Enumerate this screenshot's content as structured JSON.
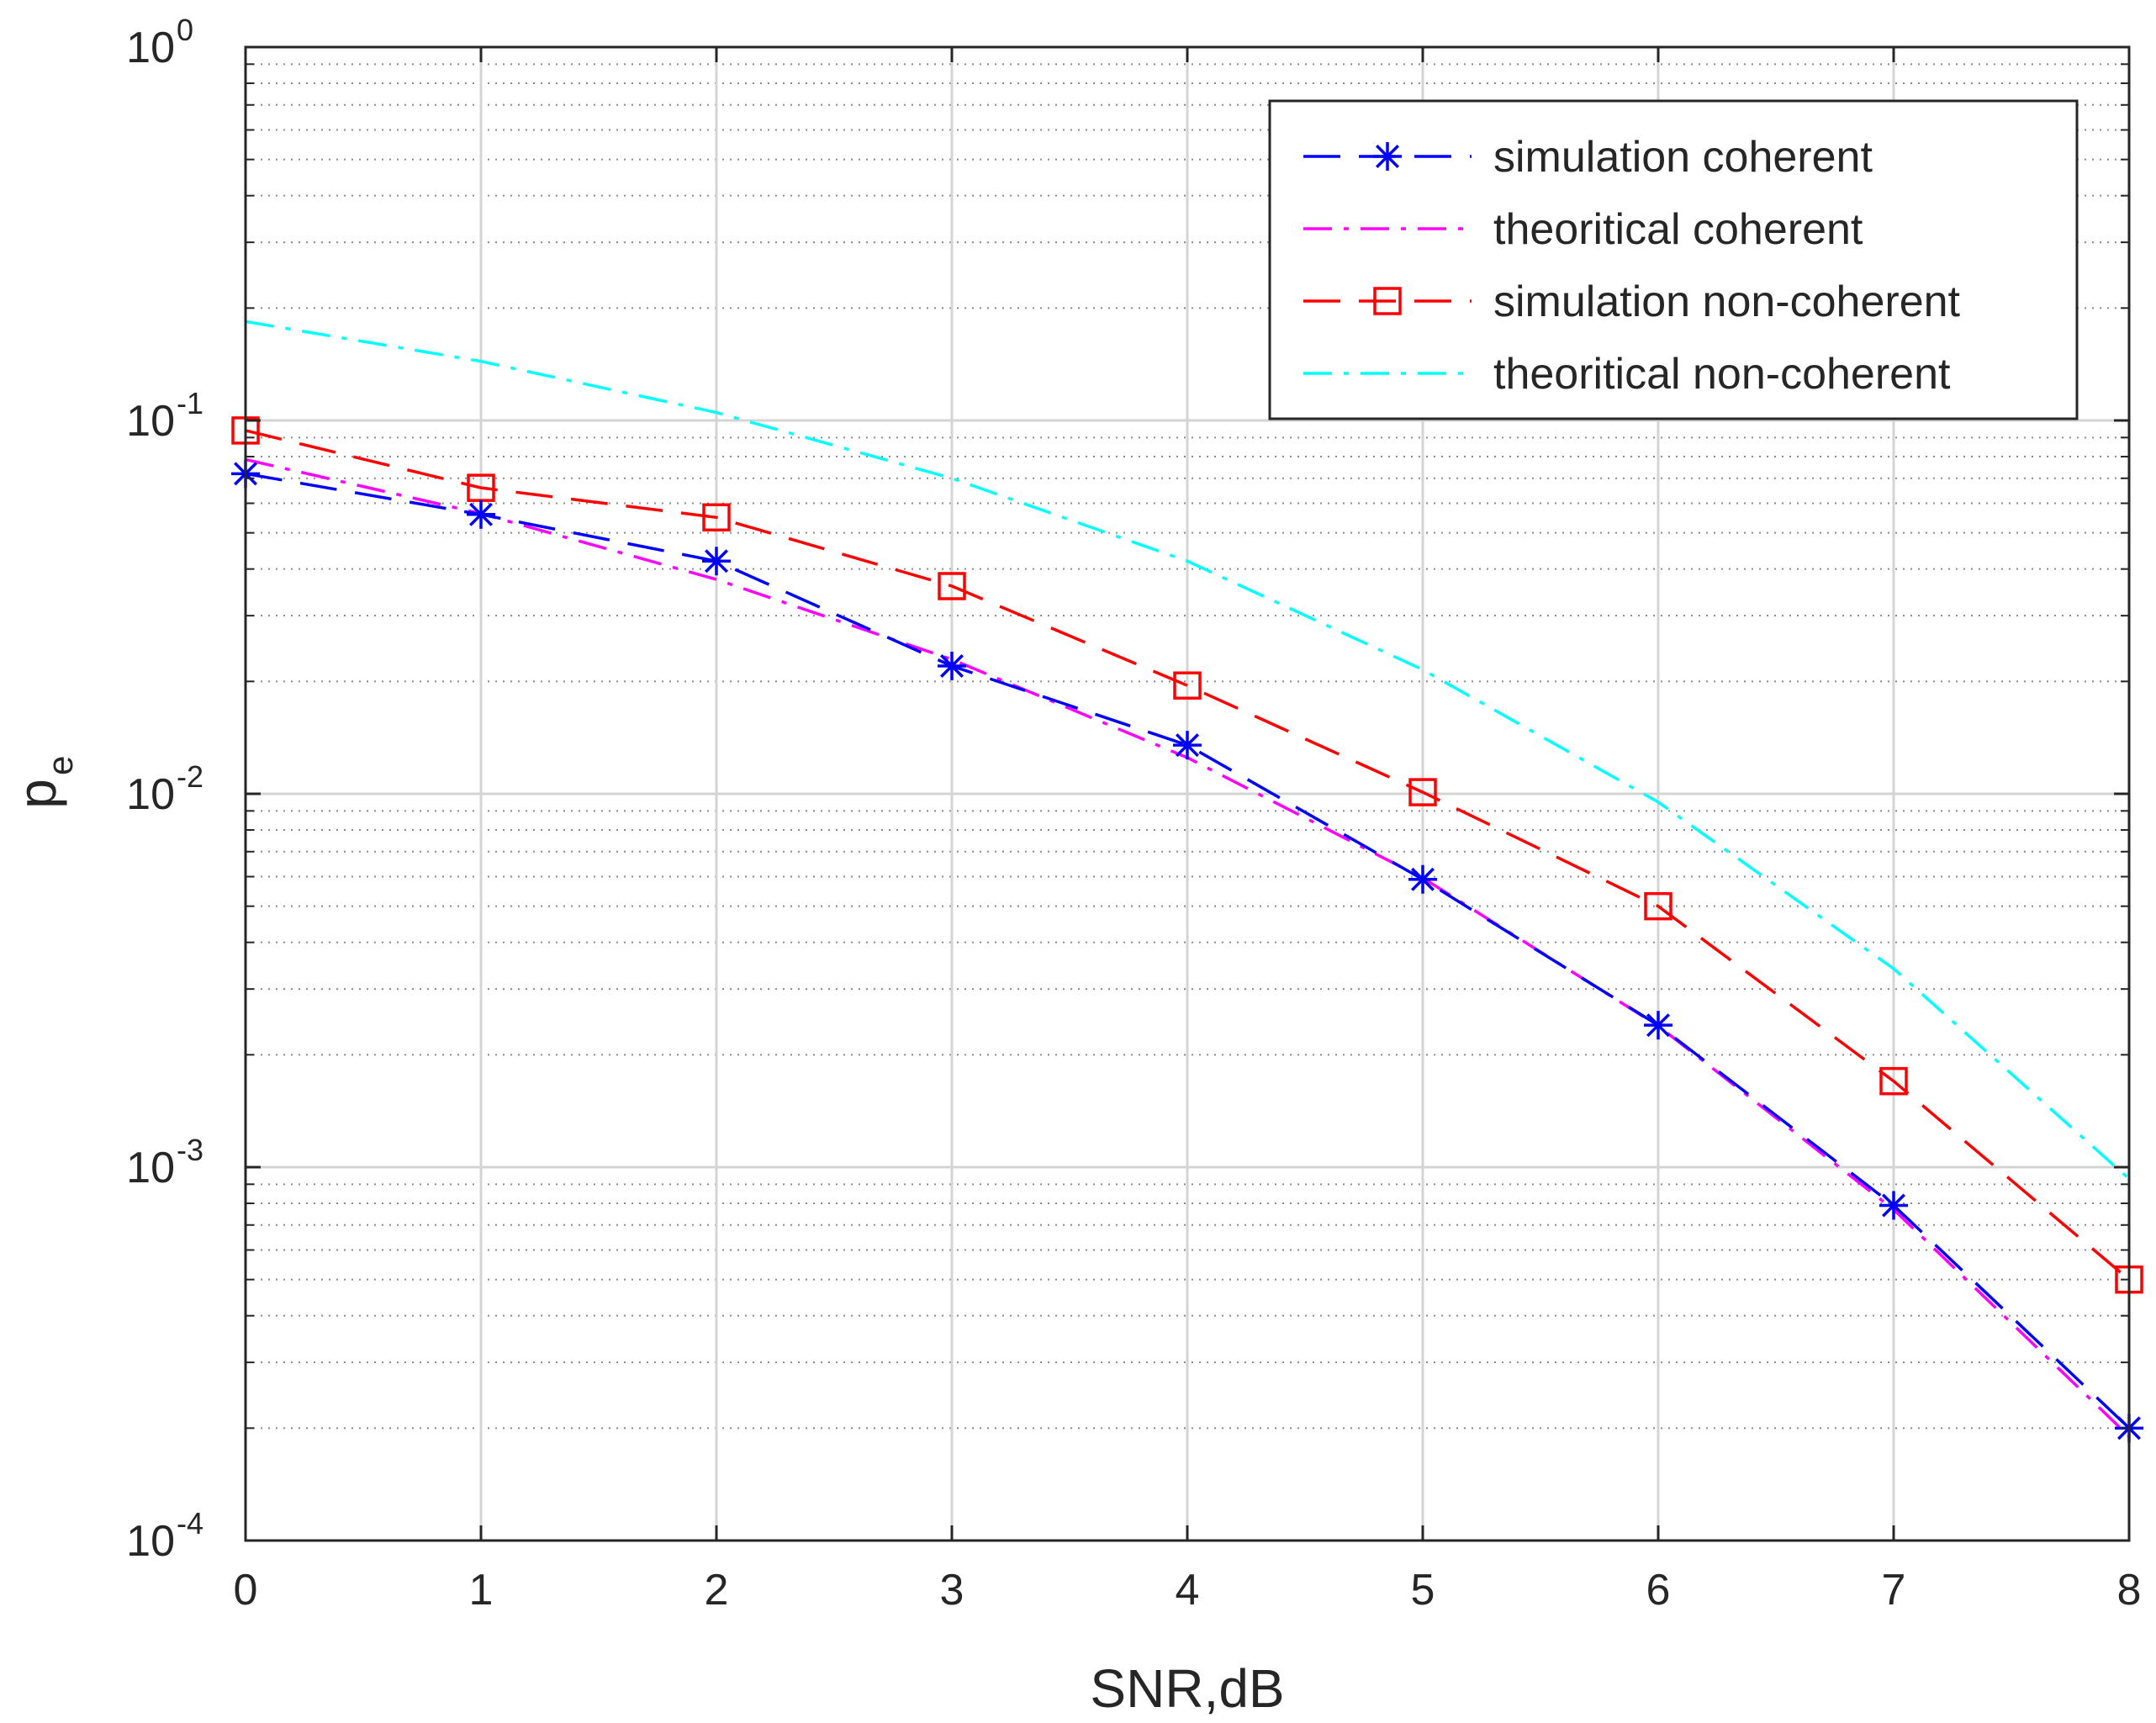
{
  "chart_data": {
    "type": "line",
    "title": "",
    "xlabel": "SNR,dB",
    "ylabel_main": "p",
    "ylabel_sub": "e",
    "xlim": [
      0,
      8
    ],
    "ylim": [
      0.0001,
      1
    ],
    "yscale": "log",
    "grid": true,
    "minor_grid": true,
    "legend_position": "top-right",
    "x_ticks": [
      "0",
      "1",
      "2",
      "3",
      "4",
      "5",
      "6",
      "7",
      "8"
    ],
    "y_ticks": [
      {
        "base": "10",
        "exp": "0",
        "value": 1
      },
      {
        "base": "10",
        "exp": "-1",
        "value": 0.1
      },
      {
        "base": "10",
        "exp": "-2",
        "value": 0.01
      },
      {
        "base": "10",
        "exp": "-3",
        "value": 0.001
      },
      {
        "base": "10",
        "exp": "-4",
        "value": 0.0001
      }
    ],
    "x": [
      0,
      1,
      2,
      3,
      4,
      5,
      6,
      7,
      8
    ],
    "series": [
      {
        "name": "simulation coherent",
        "color": "#0000ff",
        "dash": "dash",
        "marker": "asterisk",
        "values": [
          0.072,
          0.056,
          0.042,
          0.022,
          0.0135,
          0.0059,
          0.0024,
          0.00079,
          0.0002
        ]
      },
      {
        "name": "theoritical coherent",
        "color": "#ff00ff",
        "dash": "dashdot",
        "marker": "none",
        "values": [
          0.0786,
          0.0563,
          0.0375,
          0.0229,
          0.0125,
          0.00595,
          0.00239,
          0.00077,
          0.00019
        ]
      },
      {
        "name": "simulation non-coherent",
        "color": "#ff0000",
        "dash": "dash",
        "marker": "square",
        "values": [
          0.094,
          0.066,
          0.055,
          0.036,
          0.0195,
          0.0101,
          0.005,
          0.0017,
          0.0005
        ]
      },
      {
        "name": "theoritical non-coherent",
        "color": "#00ffff",
        "dash": "dashdot",
        "marker": "none",
        "values": [
          0.184,
          0.144,
          0.105,
          0.07,
          0.042,
          0.0215,
          0.0095,
          0.0034,
          0.00093
        ]
      }
    ]
  }
}
